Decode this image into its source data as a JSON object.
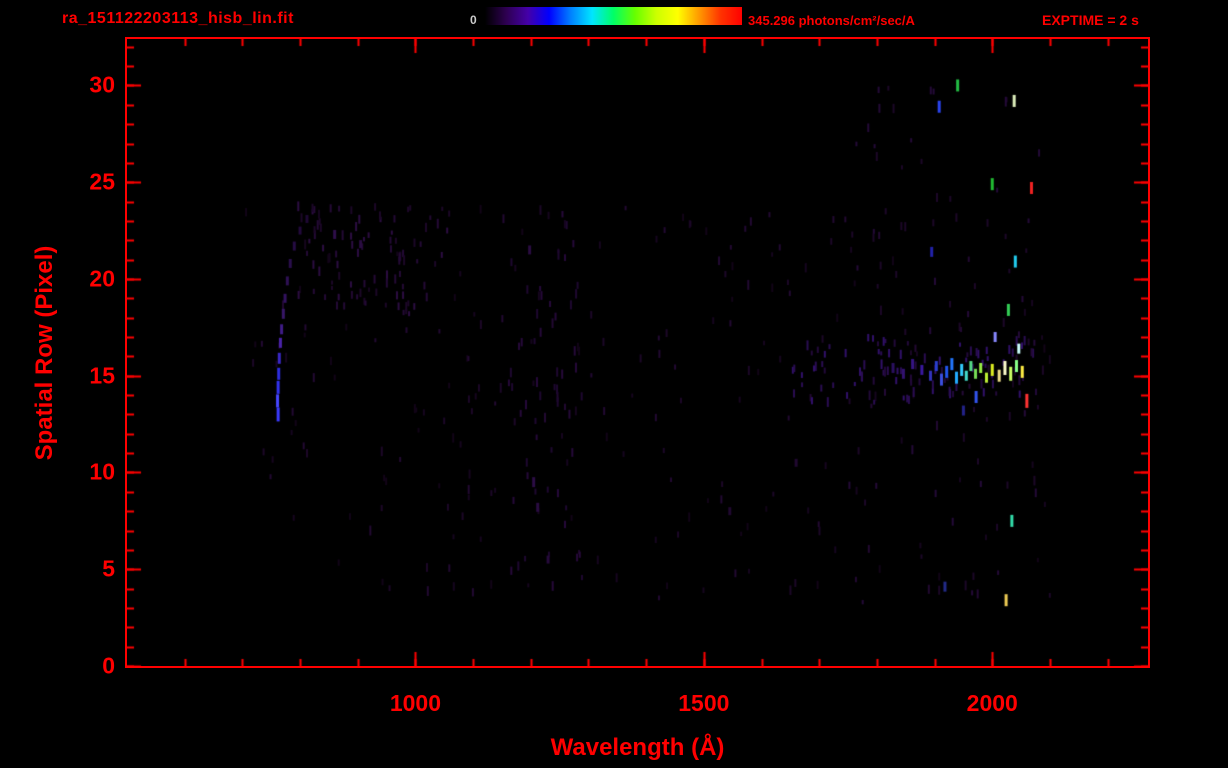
{
  "header": {
    "filename": "ra_151122203113_hisb_lin.fit",
    "exptime": "EXPTIME = 2 s",
    "colorbar": {
      "min_label": "0",
      "max_label": "345.296 photons/cm²/sec/A",
      "gradient": [
        "#000000",
        "#2e0051",
        "#4400a8",
        "#0000ff",
        "#0080ff",
        "#00e5ff",
        "#00ff66",
        "#66ff00",
        "#ccff00",
        "#ffff00",
        "#ff9900",
        "#ff3300",
        "#ff0000"
      ]
    },
    "text_color": "#ff0000"
  },
  "chart_data": {
    "type": "heatmap",
    "title": "ra_151122203113_hisb_lin.fit",
    "xlabel": "Wavelength (Å)",
    "ylabel": "Spatial Row (Pixel)",
    "xlim": [
      500,
      2270
    ],
    "ylim": [
      0,
      32.4
    ],
    "xticks_major": [
      1000,
      1500,
      2000
    ],
    "xticks_minor": {
      "from": 600,
      "to": 2200,
      "step": 100
    },
    "yticks_major": [
      0,
      5,
      10,
      15,
      20,
      25,
      30
    ],
    "yticks_minor": {
      "from": 0,
      "to": 32,
      "step": 1
    },
    "axis_color": "#ff0000",
    "background": "#000000",
    "colorbar_range": [
      0,
      345.296
    ],
    "units": "photons/cm²/sec/A",
    "exptime_seconds": 2,
    "bright_points": [
      [
        762,
        13.0,
        "#3a3aff",
        14
      ],
      [
        761,
        13.7,
        "#4646ff",
        13
      ],
      [
        762,
        14.4,
        "#3232f0",
        13
      ],
      [
        763,
        15.1,
        "#2d2de0",
        12
      ],
      [
        764,
        15.9,
        "#3a28c8",
        11
      ],
      [
        766,
        16.7,
        "#4a22a8",
        10
      ],
      [
        768,
        17.4,
        "#401c88",
        10
      ],
      [
        771,
        18.2,
        "#381768",
        10
      ],
      [
        774,
        19.0,
        "#331260",
        9
      ],
      [
        778,
        19.9,
        "#2e1054",
        9
      ],
      [
        783,
        20.8,
        "#2a0e4c",
        9
      ],
      [
        790,
        21.7,
        "#260c44",
        9
      ],
      [
        800,
        22.5,
        "#22093c",
        8
      ],
      [
        812,
        23.1,
        "#1e0834",
        8
      ],
      [
        1828,
        15.4,
        "#2a1060",
        10
      ],
      [
        1846,
        15.1,
        "#321270",
        10
      ],
      [
        1862,
        15.6,
        "#361584",
        10
      ],
      [
        1878,
        15.3,
        "#3a18a0",
        10
      ],
      [
        1893,
        15.0,
        "#3333bb",
        10
      ],
      [
        1903,
        15.5,
        "#2a3fd0",
        10
      ],
      [
        1912,
        14.8,
        "#3b4fe0",
        12
      ],
      [
        1921,
        15.2,
        "#2255ee",
        12
      ],
      [
        1930,
        15.6,
        "#2277ff",
        12
      ],
      [
        1938,
        14.9,
        "#22aaff",
        12
      ],
      [
        1947,
        15.3,
        "#33ccff",
        12
      ],
      [
        1955,
        15.0,
        "#44ddcc",
        10
      ],
      [
        1963,
        15.5,
        "#55dd88",
        10
      ],
      [
        1971,
        15.1,
        "#77dd55",
        10
      ],
      [
        1980,
        15.4,
        "#99ee44",
        10
      ],
      [
        1990,
        14.9,
        "#bbee33",
        10
      ],
      [
        2000,
        15.3,
        "#ddee22",
        12
      ],
      [
        2012,
        15.0,
        "#eedd88",
        12
      ],
      [
        2022,
        15.4,
        "#ffffcc",
        14
      ],
      [
        2032,
        15.1,
        "#ccff66",
        14
      ],
      [
        2042,
        15.5,
        "#88ff88",
        12
      ],
      [
        2052,
        15.2,
        "#ffee44",
        12
      ],
      [
        1940,
        30.0,
        "#22bb44",
        12
      ],
      [
        1908,
        28.9,
        "#2a44ee",
        12
      ],
      [
        2038,
        29.2,
        "#ddeebb",
        12
      ],
      [
        2000,
        24.9,
        "#22bb33",
        12
      ],
      [
        2068,
        24.7,
        "#ee2222",
        12
      ],
      [
        2040,
        20.9,
        "#22ccee",
        12
      ],
      [
        1895,
        21.4,
        "#2222aa",
        10
      ],
      [
        2028,
        18.4,
        "#33cc55",
        12
      ],
      [
        2005,
        17.0,
        "#8888ff",
        10
      ],
      [
        2046,
        16.4,
        "#ccffff",
        10
      ],
      [
        2060,
        13.7,
        "#ff3333",
        14
      ],
      [
        1972,
        13.9,
        "#3355ee",
        12
      ],
      [
        1950,
        13.2,
        "#222288",
        10
      ],
      [
        2034,
        7.5,
        "#33ddaa",
        12
      ],
      [
        2024,
        3.4,
        "#eecc55",
        12
      ],
      [
        1918,
        4.1,
        "#222a88",
        10
      ],
      [
        1205,
        9.5,
        "#2c0d46",
        10
      ],
      [
        1212,
        8.2,
        "#2a0c42",
        9
      ],
      [
        1198,
        21.5,
        "#2a0c42",
        9
      ],
      [
        860,
        22.3,
        "#2e0e4a",
        9
      ],
      [
        905,
        21.8,
        "#2a0c42",
        8
      ],
      [
        1230,
        5.5,
        "#260a3c",
        8
      ],
      [
        1545,
        8.0,
        "#200830",
        8
      ],
      [
        1660,
        10.5,
        "#200830",
        8
      ]
    ],
    "speckle_regions": [
      {
        "x": [
          700,
          2100
        ],
        "y": [
          3.5,
          24
        ],
        "count": 240,
        "colors": [
          "#16051f",
          "#1c0728",
          "#220932",
          "#120418"
        ],
        "seed": 101
      },
      {
        "x": [
          790,
          1060
        ],
        "y": [
          18,
          23.8
        ],
        "count": 85,
        "colors": [
          "#240a36",
          "#2c0d42",
          "#1c0728"
        ],
        "seed": 202
      },
      {
        "x": [
          1160,
          1290
        ],
        "y": [
          4,
          23.5
        ],
        "count": 55,
        "colors": [
          "#1e0830",
          "#26093a"
        ],
        "seed": 303
      },
      {
        "x": [
          1650,
          2080
        ],
        "y": [
          13.6,
          17.0
        ],
        "count": 95,
        "colors": [
          "#22093a",
          "#2a0d52",
          "#31106a"
        ],
        "seed": 404
      },
      {
        "x": [
          1750,
          2100
        ],
        "y": [
          3,
          30.5
        ],
        "count": 70,
        "colors": [
          "#1c0728",
          "#240a38"
        ],
        "seed": 505
      }
    ]
  }
}
